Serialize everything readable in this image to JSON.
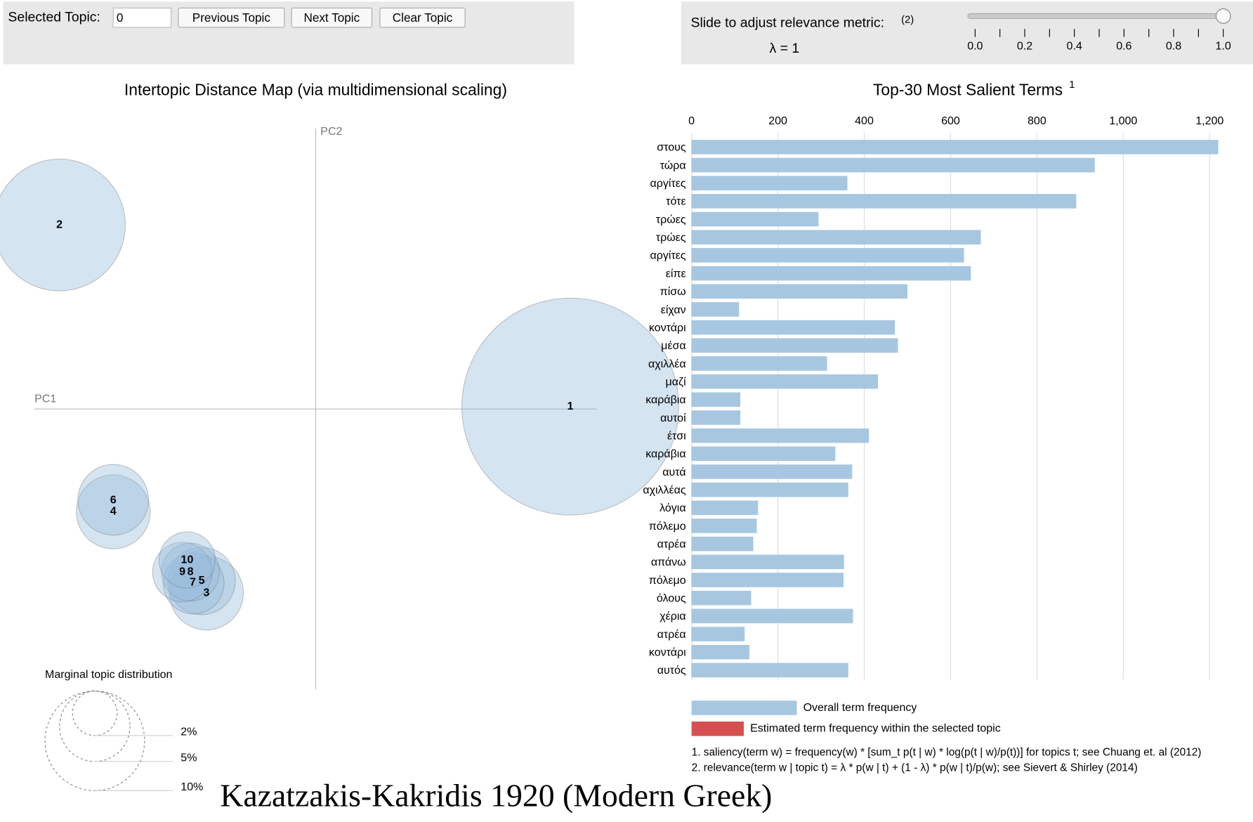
{
  "controls": {
    "selected_topic_label": "Selected Topic:",
    "selected_topic_value": "0",
    "buttons": [
      "Previous Topic",
      "Next Topic",
      "Clear Topic"
    ]
  },
  "slider": {
    "label": "Slide to adjust relevance metric:",
    "note": "(2)",
    "lambda_text": "λ = 1",
    "value": 1,
    "range": [
      0,
      1
    ],
    "ticks": [
      {
        "value": 0,
        "label": "0.0"
      },
      {
        "value": 0.2,
        "label": "0.2"
      },
      {
        "value": 0.4,
        "label": "0.4"
      },
      {
        "value": 0.6,
        "label": "0.6"
      },
      {
        "value": 0.8,
        "label": "0.8"
      },
      {
        "value": 1,
        "label": "1.0"
      }
    ]
  },
  "mds": {
    "title": "Intertopic Distance Map (via multidimensional scaling)",
    "pc1": "PC1",
    "pc2": "PC2",
    "color": "#97bcdb",
    "topics": [
      "1",
      "2",
      "3",
      "4",
      "5",
      "6",
      "7",
      "8",
      "9",
      "10"
    ]
  },
  "marginal": {
    "title": "Marginal topic distribution",
    "sizes": [
      {
        "value": 2,
        "label": "2%"
      },
      {
        "value": 5,
        "label": "5%"
      },
      {
        "value": 10,
        "label": "10%"
      }
    ]
  },
  "chart_data": {
    "type": "bar",
    "orientation": "horizontal",
    "title": "Top-30 Most Salient Terms",
    "title_note": "1",
    "color": "#a7c7e1",
    "categories": [
      "στους",
      "τώρα",
      "αργίτες",
      "τότε",
      "τρώες",
      "τρώες",
      "αργίτες",
      "είπε",
      "πίσω",
      "είχαν",
      "κοντάρι",
      "μέσα",
      "αχιλλέα",
      "μαζί",
      "καράβια",
      "αυτοί",
      "έτσι",
      "καράβια",
      "αυτά",
      "αχιλλέας",
      "λόγια",
      "πόλεμο",
      "ατρέα",
      "απάνω",
      "πόλεμο",
      "όλους",
      "χέρια",
      "ατρέα",
      "κοντάρι",
      "αυτός"
    ],
    "values": [
      1220,
      934,
      361,
      891,
      294,
      670,
      631,
      647,
      500,
      110,
      471,
      478,
      314,
      432,
      113,
      113,
      411,
      333,
      372,
      363,
      154,
      151,
      143,
      353,
      352,
      138,
      374,
      123,
      134,
      363
    ],
    "xlim": [
      0,
      1200
    ],
    "xticks": [
      0,
      200,
      400,
      600,
      800,
      {
        "value": 1000,
        "label": "1,000"
      },
      {
        "value": 1200,
        "label": "1,200"
      }
    ],
    "grid": true,
    "legend": [
      {
        "name": "Overall term frequency",
        "color": "#a7c7e1"
      },
      {
        "name": "Estimated term frequency within the selected topic",
        "color": "#d6504f"
      }
    ]
  },
  "footnotes": [
    "1. saliency(term w) = frequency(w) * [sum_t p(t | w) * log(p(t | w)/p(t))] for topics t; see Chuang et. al (2012)",
    "2. relevance(term w | topic t) = λ * p(w | t) + (1 - λ) * p(w | t)/p(w); see Sievert & Shirley (2014)"
  ],
  "caption": "Kazatzakis-Kakridis 1920 (Modern Greek)"
}
